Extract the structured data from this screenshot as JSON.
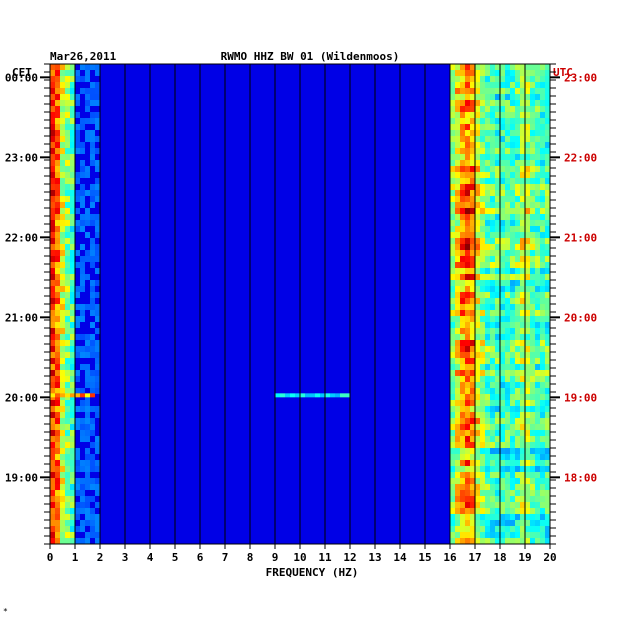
{
  "chart_data": {
    "type": "heatmap",
    "title": "RWMO HHZ BW 01 (Wildenmoos)",
    "date": "Mar26,2011",
    "xlabel": "FREQUENCY (HZ)",
    "xlim": [
      0,
      20
    ],
    "x_ticks": [
      "0",
      "1",
      "2",
      "3",
      "4",
      "5",
      "6",
      "7",
      "8",
      "9",
      "10",
      "11",
      "12",
      "13",
      "14",
      "15",
      "16",
      "17",
      "18",
      "19",
      "20"
    ],
    "left_axis_label": "CET",
    "left_ticks": [
      "00:00",
      "23:00",
      "22:00",
      "21:00",
      "20:00",
      "19:00"
    ],
    "right_axis_label": "UTC",
    "right_ticks": [
      "23:00",
      "22:00",
      "21:00",
      "20:00",
      "19:00",
      "18:00"
    ],
    "hours_cet_top_to_bottom": [
      0.1,
      0,
      23,
      22,
      21,
      20,
      19
    ],
    "bands": [
      {
        "name": "low-frequency band",
        "range_hz": [
          0,
          1.0
        ],
        "level": "high"
      },
      {
        "name": "high-frequency band",
        "range_hz": [
          16.0,
          20
        ],
        "level": "high",
        "peak_hz": 16.7
      }
    ],
    "events": [
      {
        "time_cet": "20:00",
        "range_hz": [
          0,
          1.8
        ],
        "level": "high"
      },
      {
        "time_cet": "20:00",
        "range_hz": [
          9,
          12
        ],
        "level": "medium"
      },
      {
        "time_cet": "00:15",
        "range_hz": [
          0,
          20
        ],
        "level": "gap"
      }
    ],
    "colors": {
      "low": "#000080",
      "mid": "#00a0ff",
      "high": "#ffff00",
      "max": "#ff0000",
      "utc_text": "#cc0000",
      "cet_text": "#000000"
    }
  },
  "footer_mark": "*"
}
